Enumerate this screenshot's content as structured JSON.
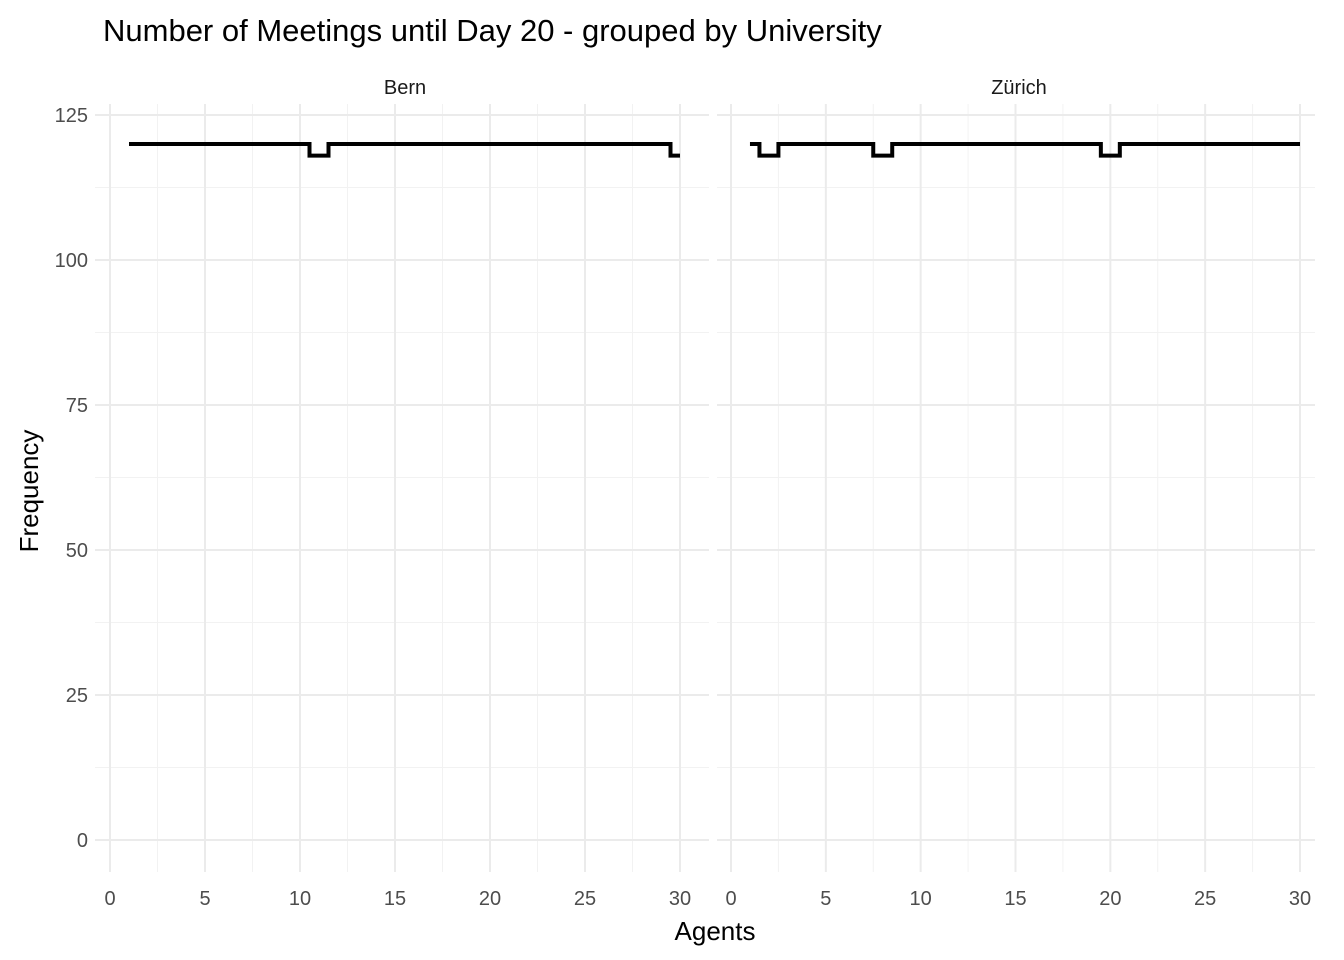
{
  "chart_data": {
    "type": "line",
    "style": "step",
    "title": "Number of Meetings until Day 20 - grouped by University",
    "xlabel": "Agents",
    "ylabel": "Frequency",
    "xlim": [
      0,
      30
    ],
    "ylim": [
      0,
      125
    ],
    "x_ticks": [
      "0",
      "5",
      "10",
      "15",
      "20",
      "25",
      "30"
    ],
    "y_ticks": [
      "0",
      "25",
      "50",
      "75",
      "100",
      "125"
    ],
    "grid": true,
    "line_color": "#000000",
    "panels": [
      {
        "name": "Bern",
        "x": [
          1,
          2,
          3,
          4,
          5,
          6,
          7,
          8,
          9,
          10,
          11,
          12,
          13,
          14,
          15,
          16,
          17,
          18,
          19,
          20,
          21,
          22,
          23,
          24,
          25,
          26,
          27,
          28,
          29,
          30
        ],
        "y": [
          120,
          120,
          120,
          120,
          120,
          120,
          120,
          120,
          120,
          120,
          118,
          120,
          120,
          120,
          120,
          120,
          120,
          120,
          120,
          120,
          120,
          120,
          120,
          120,
          120,
          120,
          120,
          120,
          120,
          118
        ]
      },
      {
        "name": "Zürich",
        "x": [
          1,
          2,
          3,
          4,
          5,
          6,
          7,
          8,
          9,
          10,
          11,
          12,
          13,
          14,
          15,
          16,
          17,
          18,
          19,
          20,
          21,
          22,
          23,
          24,
          25,
          26,
          27,
          28,
          29,
          30
        ],
        "y": [
          120,
          118,
          120,
          120,
          120,
          120,
          120,
          118,
          120,
          120,
          120,
          120,
          120,
          120,
          120,
          120,
          120,
          120,
          120,
          118,
          120,
          120,
          120,
          120,
          120,
          120,
          120,
          120,
          120,
          120
        ]
      }
    ]
  }
}
